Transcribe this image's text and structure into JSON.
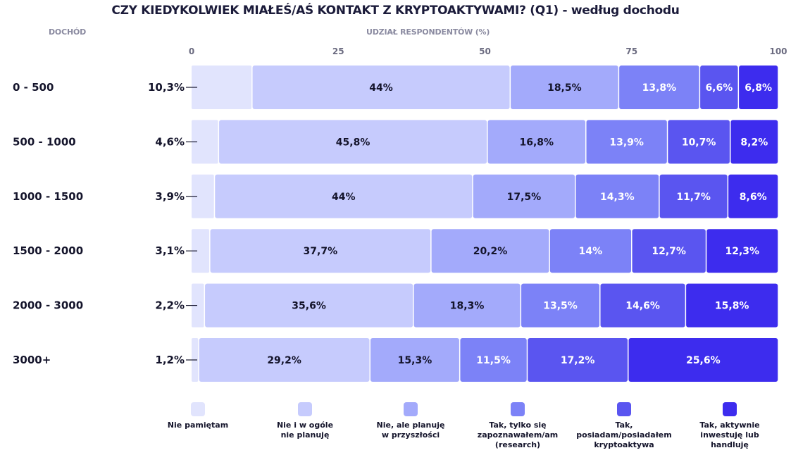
{
  "title": "CZY KIEDYKOLWIEK MIAŁEŚ/AŚ KONTAKT Z KRYPTOAKTYWAMI? (Q1) - według dochodu",
  "col_header_left": "DOCHÓD",
  "col_header_axis": "UDZIAŁ RESPONDENTÓW (%)",
  "colors": [
    "#e1e4fd",
    "#c6cbfd",
    "#a3aafb",
    "#7c82f7",
    "#5a55f0",
    "#3d2cee"
  ],
  "chart_data": {
    "type": "bar",
    "orientation": "horizontal",
    "stacked": true,
    "title": "CZY KIEDYKOLWIEK MIAŁEŚ/AŚ KONTAKT Z KRYPTOAKTYWAMI? (Q1) - według dochodu",
    "xlabel": "UDZIAŁ RESPONDENTÓW (%)",
    "ylabel": "DOCHÓD",
    "xlim": [
      0,
      100
    ],
    "xticks": [
      "0",
      "25",
      "50",
      "75",
      "100"
    ],
    "categories": [
      "0 - 500",
      "500 - 1000",
      "1000 - 1500",
      "1500 - 2000",
      "2000 - 3000",
      "3000+"
    ],
    "series": [
      {
        "name": "Nie pamiętam",
        "values": [
          10.3,
          4.6,
          3.9,
          3.1,
          2.2,
          1.2
        ],
        "labels": [
          "10,3%",
          "4,6%",
          "3,9%",
          "3,1%",
          "2,2%",
          "1,2%"
        ]
      },
      {
        "name": "Nie i w ogóle nie planuję",
        "values": [
          44,
          45.8,
          44,
          37.7,
          35.6,
          29.2
        ],
        "labels": [
          "44%",
          "45,8%",
          "44%",
          "37,7%",
          "35,6%",
          "29,2%"
        ]
      },
      {
        "name": "Nie, ale planuję w przyszłości",
        "values": [
          18.5,
          16.8,
          17.5,
          20.2,
          18.3,
          15.3
        ],
        "labels": [
          "18,5%",
          "16,8%",
          "17,5%",
          "20,2%",
          "18,3%",
          "15,3%"
        ]
      },
      {
        "name": "Tak, tylko się zapoznawałem/am (research)",
        "values": [
          13.8,
          13.9,
          14.3,
          14,
          13.5,
          11.5
        ],
        "labels": [
          "13,8%",
          "13,9%",
          "14,3%",
          "14%",
          "13,5%",
          "11,5%"
        ]
      },
      {
        "name": "Tak, posiadam/posiadałem kryptoaktywa",
        "values": [
          6.6,
          10.7,
          11.7,
          12.7,
          14.6,
          17.2
        ],
        "labels": [
          "6,6%",
          "10,7%",
          "11,7%",
          "12,7%",
          "14,6%",
          "17,2%"
        ]
      },
      {
        "name": "Tak, aktywnie inwestuję lub handluję",
        "values": [
          6.8,
          8.2,
          8.6,
          12.3,
          15.8,
          25.6
        ],
        "labels": [
          "6,8%",
          "8,2%",
          "8,6%",
          "12,3%",
          "15,8%",
          "25,6%"
        ]
      }
    ],
    "legend_position": "bottom",
    "legend": [
      {
        "text": "Nie pamiętam"
      },
      {
        "text": "Nie i w ogóle\nnie planuję"
      },
      {
        "text": "Nie, ale planuję\nw przyszłości"
      },
      {
        "text": "Tak, tylko się\nzapoznawałem/am\n(research)"
      },
      {
        "text": "Tak,\nposiadam/posiadałem\nkryptoaktywa"
      },
      {
        "text": "Tak, aktywnie\ninwestuję lub handluję"
      }
    ]
  }
}
